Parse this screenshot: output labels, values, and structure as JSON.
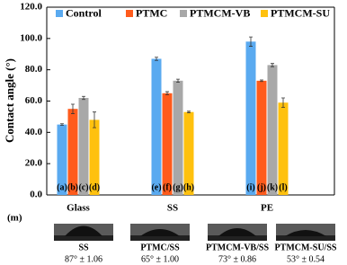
{
  "chart_data": {
    "type": "bar",
    "y_label": "Contact angle (°)",
    "categories": [
      "Glass",
      "SS",
      "PE"
    ],
    "series": [
      {
        "name": "Control",
        "color": "#5aaaf0",
        "values": [
          45,
          87,
          98
        ],
        "errors": [
          0.5,
          1,
          3
        ]
      },
      {
        "name": "PTMC",
        "color": "#ff5b1c",
        "values": [
          55,
          65,
          73
        ],
        "errors": [
          3,
          1,
          0.5
        ]
      },
      {
        "name": "PTMCM-VB",
        "color": "#a8a8a8",
        "values": [
          62,
          73,
          83
        ],
        "errors": [
          1,
          1,
          1
        ]
      },
      {
        "name": "PTMCM-SU",
        "color": "#ffc10e",
        "values": [
          48,
          53,
          59
        ],
        "errors": [
          5,
          0.5,
          3
        ]
      }
    ],
    "bar_labels": [
      "(a)",
      "(b)",
      "(c)",
      "(d)",
      "(e)",
      "(f)",
      "(g)",
      "(h)",
      "(i)",
      "(j)",
      "(k)",
      "(l)"
    ],
    "ylim": [
      0,
      120
    ],
    "yticks": [
      {
        "value": 0,
        "label": "0.0"
      },
      {
        "value": 20,
        "label": "20.0"
      },
      {
        "value": 40,
        "label": "40.0"
      },
      {
        "value": 60,
        "label": "60.0"
      },
      {
        "value": 80,
        "label": "80.0"
      },
      {
        "value": 100,
        "label": "100.0"
      },
      {
        "value": 120,
        "label": "120.0"
      }
    ],
    "legend": "top",
    "grid": false
  },
  "panel_m": {
    "label": "(m)",
    "images": [
      {
        "caption": "SS",
        "angle": "87° ± 1.06"
      },
      {
        "caption": "PTMC/SS",
        "angle": "65° ± 1.00"
      },
      {
        "caption": "PTMCM-VB/SS",
        "angle": "73° ± 0.86"
      },
      {
        "caption": "PTMCM-SU/SS",
        "angle": "53° ± 0.54"
      }
    ]
  }
}
